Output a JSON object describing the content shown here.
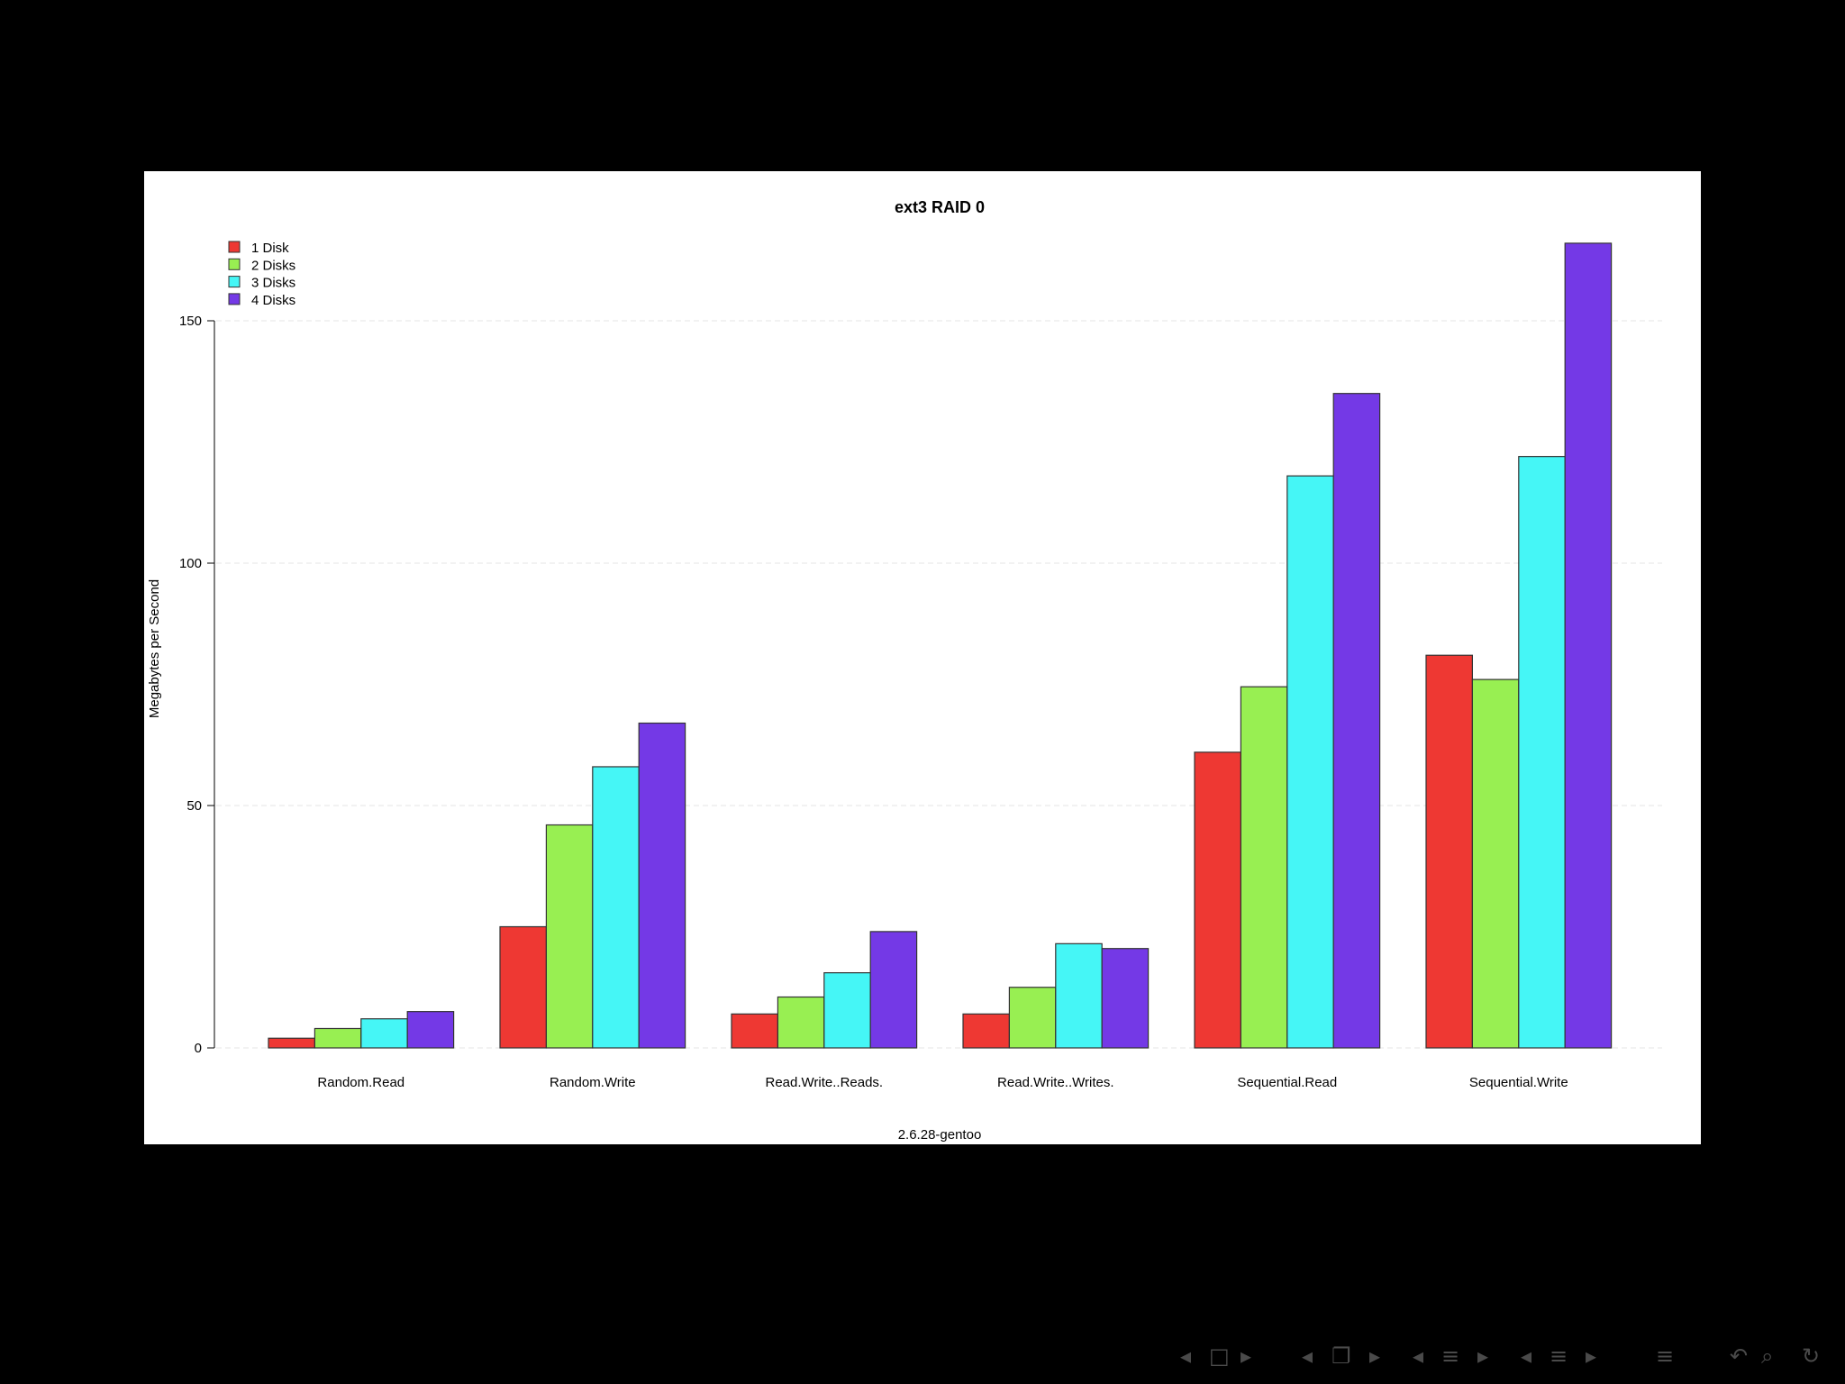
{
  "colors": {
    "background": "#000000",
    "panel": "#ffffff",
    "nav_glyph": "#4a4a4a"
  },
  "navigation": {
    "icons": [
      "nav-prev-icon",
      "nav-frame-icon",
      "nav-next-icon",
      "nav-prev-icon",
      "nav-subsection-icon",
      "nav-next-icon",
      "nav-prev-icon",
      "nav-section-icon",
      "nav-next-icon",
      "nav-prev-icon",
      "nav-section-icon",
      "nav-next-icon",
      "nav-outline-icon",
      "nav-back-icon",
      "nav-search-icon",
      "nav-refresh-icon"
    ]
  },
  "chart_data": {
    "type": "bar",
    "title": "ext3 RAID 0",
    "xlabel": "2.6.28-gentoo",
    "ylabel": "Megabytes per Second",
    "ylim": [
      0,
      167
    ],
    "yticks": [
      0,
      50,
      100,
      150
    ],
    "grid": true,
    "legend_position": "top-left",
    "categories": [
      "Random.Read",
      "Random.Write",
      "Read.Write..Reads.",
      "Read.Write..Writes.",
      "Sequential.Read",
      "Sequential.Write"
    ],
    "series": [
      {
        "name": "1 Disk",
        "color": "#ee3833",
        "values": [
          2,
          25,
          7,
          7,
          61,
          81
        ]
      },
      {
        "name": "2 Disks",
        "color": "#98ef52",
        "values": [
          4,
          46,
          10.5,
          12.5,
          74.5,
          76
        ]
      },
      {
        "name": "3 Disks",
        "color": "#45f6f6",
        "values": [
          6,
          58,
          15.5,
          21.5,
          118,
          122
        ]
      },
      {
        "name": "4 Disks",
        "color": "#7439e6",
        "values": [
          7.5,
          67,
          24,
          20.5,
          135,
          166
        ]
      }
    ]
  }
}
